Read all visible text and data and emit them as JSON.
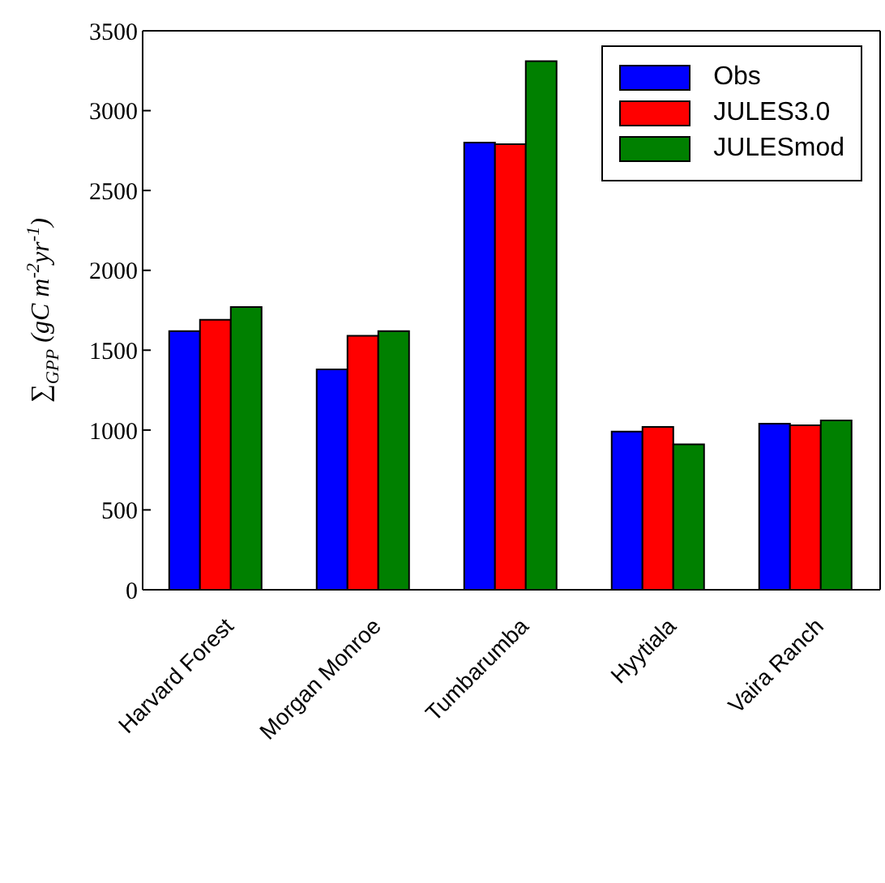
{
  "chart_data": {
    "type": "bar",
    "ylabel": "∑$_{GPP}$ (gC m$^{-2}$yr$^{-1}$)",
    "categories": [
      "Harvard Forest",
      "Morgan Monroe",
      "Tumbarumba",
      "Hyytiala",
      "Vaira Ranch"
    ],
    "series": [
      {
        "name": "Obs",
        "color": "#0000ff",
        "values": [
          1620,
          1380,
          2800,
          990,
          1040
        ]
      },
      {
        "name": "JULES3.0",
        "color": "#ff0000",
        "values": [
          1690,
          1590,
          2790,
          1020,
          1030
        ]
      },
      {
        "name": "JULESmod",
        "color": "#008000",
        "values": [
          1770,
          1620,
          3310,
          910,
          1060
        ]
      }
    ],
    "ylim": [
      0,
      3500
    ],
    "yticks": [
      0,
      500,
      1000,
      1500,
      2000,
      2500,
      3000,
      3500
    ],
    "grid": false,
    "legend": "top right"
  }
}
